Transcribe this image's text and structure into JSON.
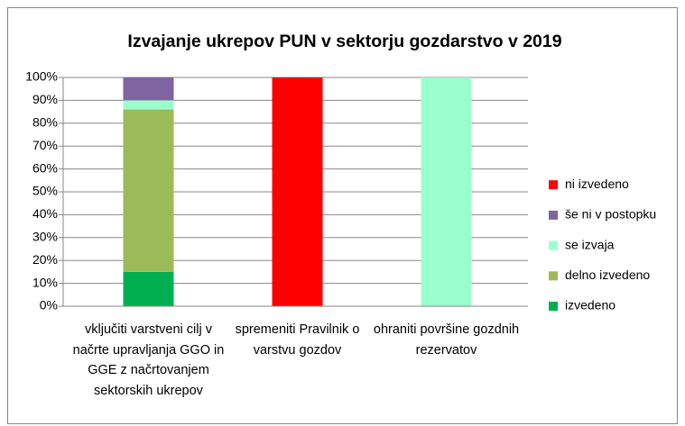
{
  "chart_data": {
    "type": "stacked_bar",
    "title": "Izvajanje ukrepov PUN  v sektorju gozdarstvo v 2019",
    "categories": [
      "vključiti varstveni cilj v načrte upravljanja GGO in GGE z načrtovanjem sektorskih ukrepov",
      "spremeniti Pravilnik o varstvu gozdov",
      "ohraniti površine gozdnih rezervatov"
    ],
    "series": [
      {
        "name": "izvedeno",
        "color": "#00b050",
        "values": [
          15,
          0,
          0
        ]
      },
      {
        "name": "delno izvedeno",
        "color": "#9bbb59",
        "values": [
          71,
          0,
          0
        ]
      },
      {
        "name": "se izvaja",
        "color": "#99ffcc",
        "values": [
          4,
          0,
          100
        ]
      },
      {
        "name": "še ni v postopku",
        "color": "#8064a2",
        "values": [
          10,
          0,
          0
        ]
      },
      {
        "name": "ni izvedeno",
        "color": "#ff0000",
        "values": [
          0,
          100,
          0
        ]
      }
    ],
    "ylim": [
      0,
      100
    ],
    "yticks": [
      {
        "value": 0,
        "label": "0%"
      },
      {
        "value": 10,
        "label": "10%"
      },
      {
        "value": 20,
        "label": "20%"
      },
      {
        "value": 30,
        "label": "30%"
      },
      {
        "value": 40,
        "label": "40%"
      },
      {
        "value": 50,
        "label": "50%"
      },
      {
        "value": 60,
        "label": "60%"
      },
      {
        "value": 70,
        "label": "70%"
      },
      {
        "value": 80,
        "label": "80%"
      },
      {
        "value": 90,
        "label": "90%"
      },
      {
        "value": 100,
        "label": "100%"
      }
    ],
    "grid": true,
    "legend": "right"
  }
}
